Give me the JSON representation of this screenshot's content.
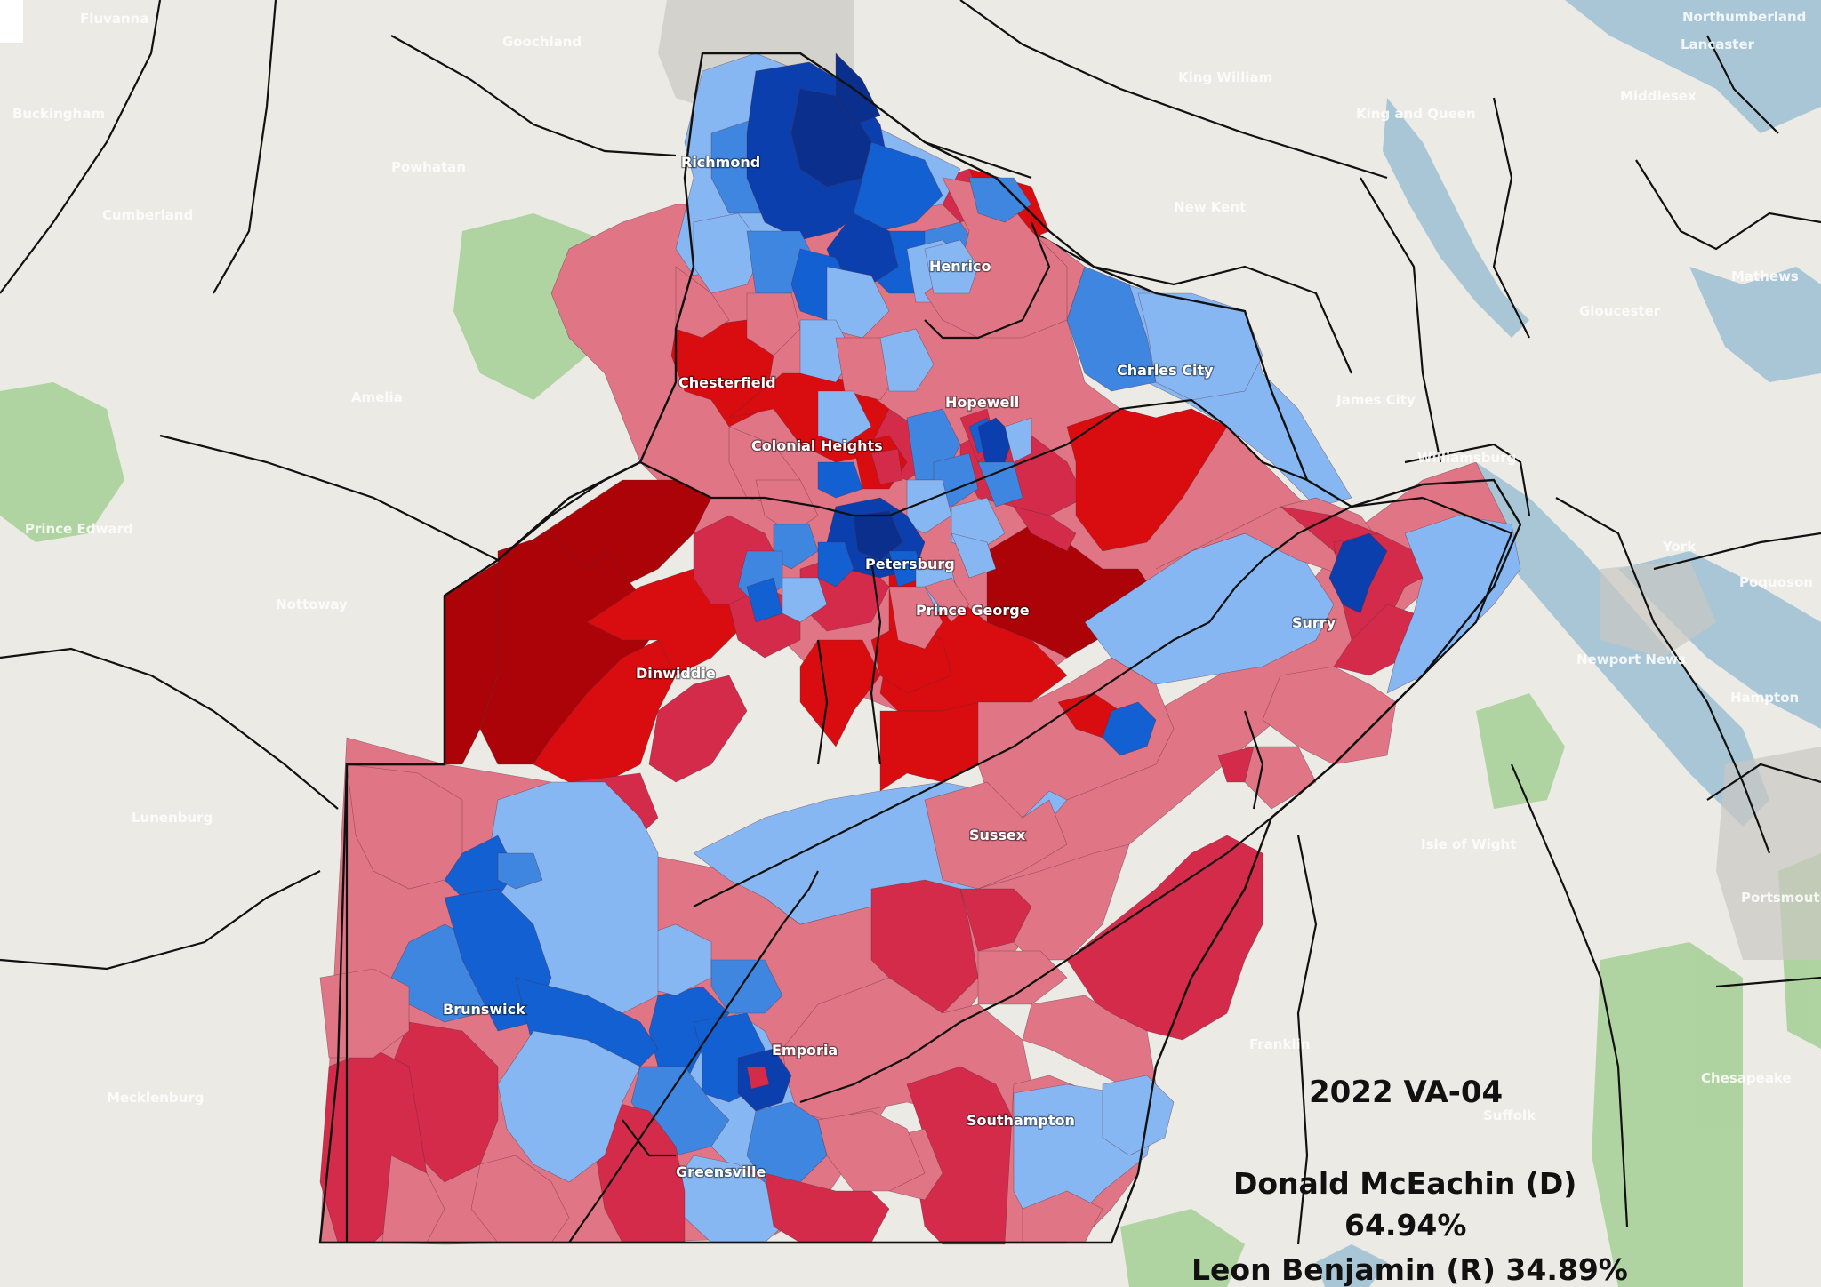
{
  "title": "2022 VA-04",
  "candidates": [
    {
      "label": "Donald McEachin (D)",
      "pct": "64.94%"
    },
    {
      "label": "Leon Benjamin (R) 34.89%"
    }
  ],
  "colors": {
    "dem_strong": "#0a2f8c",
    "dem_dark": "#0b3fae",
    "dem_mid": "#1260d2",
    "dem_light": "#3f86e0",
    "dem_pale": "#86b7f2",
    "rep_pale": "#e07585",
    "rep_light": "#d42b4a",
    "rep_mid": "#d90c10",
    "rep_dark": "#ac0309",
    "water": "#a9c6d7",
    "forest": "#7ec16a",
    "land": "#eceae4"
  },
  "district_labels": {
    "richmond": "Richmond",
    "henrico": "Henrico",
    "chesterfield": "Chesterfield",
    "hopewell": "Hopewell",
    "colonial_heights": "Colonial Heights",
    "charles_city": "Charles City",
    "petersburg": "Petersburg",
    "prince_george": "Prince George",
    "surry": "Surry",
    "dinwiddie": "Dinwiddie",
    "sussex": "Sussex",
    "brunswick": "Brunswick",
    "emporia": "Emporia",
    "greensville": "Greensville",
    "southampton": "Southampton"
  },
  "basemap_labels": {
    "fluvanna": "Fluvanna",
    "goochland": "Goochland",
    "buckingham": "Buckingham",
    "powhatan": "Powhatan",
    "cumberland": "Cumberland",
    "amelia": "Amelia",
    "prince_edward": "Prince Edward",
    "nottoway": "Nottoway",
    "lunenburg": "Lunenburg",
    "mecklenburg": "Mecklenburg",
    "king_william": "King William",
    "king_and_queen": "King and Queen",
    "new_kent": "New Kent",
    "james_city": "James City",
    "williamsburg": "Williamsburg",
    "northumberland": "Northumberland",
    "lancaster": "Lancaster",
    "middlesex": "Middlesex",
    "mathews": "Mathews",
    "gloucester": "Gloucester",
    "york": "York",
    "poquoson": "Poquoson",
    "newport_news": "Newport News",
    "hampton": "Hampton",
    "isle_of_wight": "Isle of Wight",
    "portsmouth": "Portsmouth",
    "chesapeake": "Chesapeake",
    "franklin": "Franklin",
    "suffolk": "Suffolk"
  }
}
